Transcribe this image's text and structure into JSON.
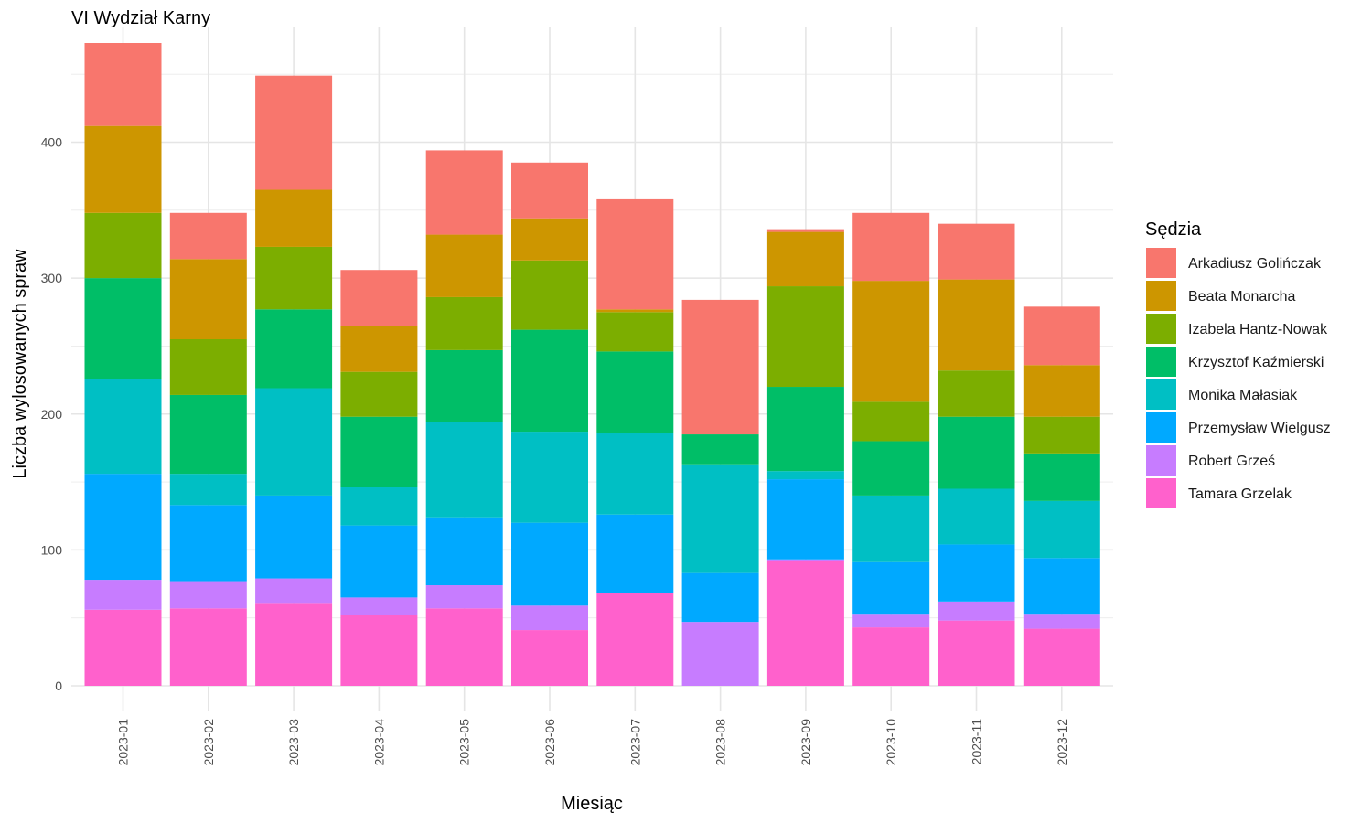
{
  "chart_data": {
    "type": "bar",
    "stacked": true,
    "title": "VI Wydział Karny",
    "xlabel": "Miesiąc",
    "ylabel": "Liczba wylosowanych spraw",
    "ylim": [
      0,
      473
    ],
    "yticks": [
      0,
      100,
      200,
      300,
      400
    ],
    "grid": true,
    "legend_title": "Sędzia",
    "legend_position": "right",
    "categories": [
      "2023-01",
      "2023-02",
      "2023-03",
      "2023-04",
      "2023-05",
      "2023-06",
      "2023-07",
      "2023-08",
      "2023-09",
      "2023-10",
      "2023-11",
      "2023-12"
    ],
    "series": [
      {
        "name": "Tamara Grzelak",
        "color": "#FF61CC",
        "values": [
          56,
          57,
          61,
          52,
          57,
          41,
          68,
          0,
          92,
          43,
          48,
          42
        ]
      },
      {
        "name": "Robert Grześ",
        "color": "#C77CFF",
        "values": [
          22,
          20,
          18,
          13,
          17,
          18,
          0,
          47,
          1,
          10,
          14,
          11
        ]
      },
      {
        "name": "Przemysław Wielgusz",
        "color": "#00A9FF",
        "values": [
          78,
          56,
          61,
          53,
          50,
          61,
          58,
          36,
          59,
          38,
          42,
          41
        ]
      },
      {
        "name": "Monika Małasiak",
        "color": "#00BFC4",
        "values": [
          70,
          23,
          79,
          28,
          70,
          67,
          60,
          80,
          6,
          49,
          41,
          42
        ]
      },
      {
        "name": "Krzysztof Kaźmierski",
        "color": "#00BE67",
        "values": [
          74,
          58,
          58,
          52,
          53,
          75,
          60,
          22,
          62,
          40,
          53,
          35
        ]
      },
      {
        "name": "Izabela Hantz-Nowak",
        "color": "#7CAE00",
        "values": [
          48,
          41,
          46,
          33,
          39,
          51,
          29,
          0,
          74,
          29,
          34,
          27
        ]
      },
      {
        "name": "Beata Monarcha",
        "color": "#CD9600",
        "values": [
          64,
          59,
          42,
          34,
          46,
          31,
          2,
          0,
          40,
          89,
          67,
          38
        ]
      },
      {
        "name": "Arkadiusz Golińczak",
        "color": "#F8766D",
        "values": [
          61,
          34,
          84,
          41,
          62,
          41,
          81,
          99,
          2,
          50,
          41,
          43
        ]
      }
    ],
    "legend_order": [
      "Arkadiusz Golińczak",
      "Beata Monarcha",
      "Izabela Hantz-Nowak",
      "Krzysztof Kaźmierski",
      "Monika Małasiak",
      "Przemysław Wielgusz",
      "Robert Grześ",
      "Tamara Grzelak"
    ]
  }
}
